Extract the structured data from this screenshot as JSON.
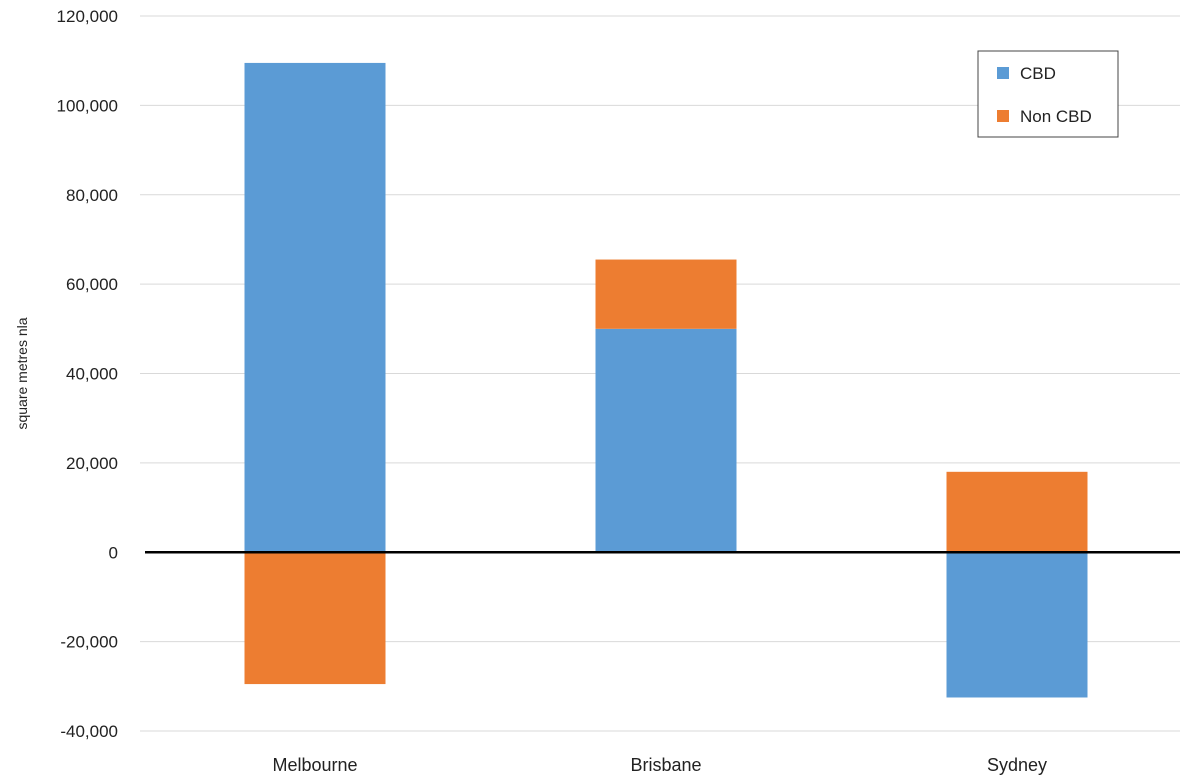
{
  "chart_data": {
    "type": "bar",
    "stacked": true,
    "title": "",
    "xlabel": "",
    "ylabel": "square metres nla",
    "ylim": [
      -40000,
      120000
    ],
    "yticks": [
      120000,
      100000,
      80000,
      60000,
      40000,
      20000,
      0,
      -20000,
      -40000
    ],
    "ytick_labels": [
      "120,000",
      "100,000",
      "80,000",
      "60,000",
      "40,000",
      "20,000",
      "0",
      "-20,000",
      "-40,000"
    ],
    "categories": [
      "Melbourne",
      "Brisbane",
      "Sydney"
    ],
    "series": [
      {
        "name": "CBD",
        "color": "#5b9bd5",
        "values": [
          109500,
          50000,
          -32500
        ]
      },
      {
        "name": "Non CBD",
        "color": "#ed7d31",
        "values": [
          -29500,
          15500,
          18000
        ]
      }
    ],
    "grid": true,
    "legend_position": "top-right"
  }
}
